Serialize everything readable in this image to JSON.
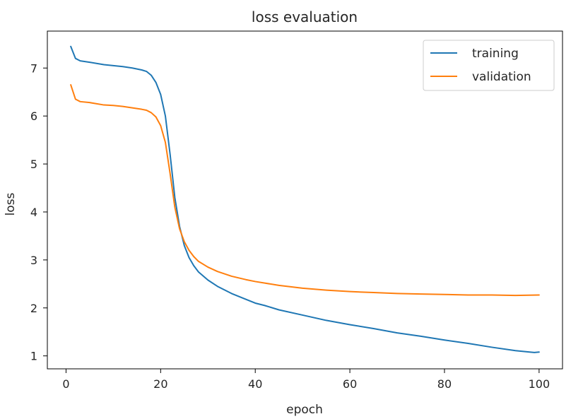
{
  "chart_data": {
    "type": "line",
    "title": "loss evaluation",
    "xlabel": "epoch",
    "ylabel": "loss",
    "xlim": [
      -3.95,
      104.95
    ],
    "ylim": [
      0.73,
      7.77
    ],
    "xticks": [
      0,
      20,
      40,
      60,
      80,
      100
    ],
    "yticks": [
      1,
      2,
      3,
      4,
      5,
      6,
      7
    ],
    "grid": false,
    "legend_position": "top-right",
    "series": [
      {
        "name": "training",
        "color": "#1f77b4",
        "x": [
          1,
          2,
          3,
          5,
          8,
          10,
          12,
          14,
          16,
          17,
          18,
          19,
          20,
          21,
          22,
          23,
          24,
          25,
          26,
          27,
          28,
          30,
          32,
          35,
          38,
          40,
          42,
          45,
          50,
          55,
          60,
          65,
          70,
          75,
          80,
          85,
          90,
          95,
          98,
          99,
          100
        ],
        "y": [
          7.45,
          7.2,
          7.15,
          7.12,
          7.07,
          7.05,
          7.03,
          7.0,
          6.96,
          6.93,
          6.85,
          6.7,
          6.45,
          6.0,
          5.2,
          4.3,
          3.7,
          3.3,
          3.05,
          2.88,
          2.75,
          2.58,
          2.45,
          2.3,
          2.18,
          2.1,
          2.05,
          1.96,
          1.85,
          1.74,
          1.65,
          1.57,
          1.48,
          1.41,
          1.33,
          1.26,
          1.18,
          1.11,
          1.08,
          1.07,
          1.08
        ]
      },
      {
        "name": "validation",
        "color": "#ff7f0e",
        "x": [
          1,
          2,
          3,
          5,
          8,
          10,
          12,
          14,
          16,
          17,
          18,
          19,
          20,
          21,
          22,
          23,
          24,
          25,
          26,
          27,
          28,
          30,
          32,
          35,
          38,
          40,
          45,
          50,
          55,
          60,
          65,
          70,
          75,
          80,
          85,
          90,
          95,
          100
        ],
        "y": [
          6.65,
          6.35,
          6.3,
          6.28,
          6.23,
          6.22,
          6.2,
          6.17,
          6.14,
          6.12,
          6.07,
          5.98,
          5.8,
          5.45,
          4.8,
          4.1,
          3.65,
          3.38,
          3.2,
          3.07,
          2.97,
          2.85,
          2.76,
          2.66,
          2.59,
          2.55,
          2.47,
          2.41,
          2.37,
          2.34,
          2.32,
          2.3,
          2.29,
          2.28,
          2.27,
          2.27,
          2.26,
          2.27
        ]
      }
    ]
  }
}
